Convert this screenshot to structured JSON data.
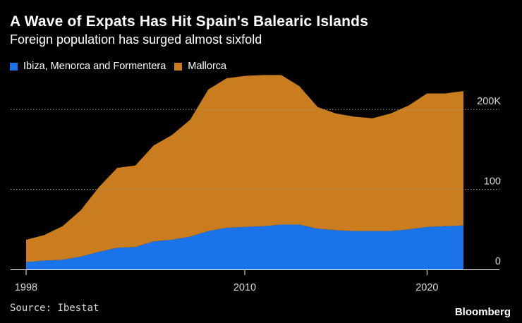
{
  "header": {
    "title": "A Wave of Expats Has Hit Spain's Balearic Islands",
    "subtitle": "Foreign population has surged almost sixfold"
  },
  "footer": {
    "source": "Source: Ibestat",
    "brand": "Bloomberg"
  },
  "chart_data": {
    "type": "area",
    "stacked": true,
    "title": "A Wave of Expats Has Hit Spain's Balearic Islands",
    "subtitle": "Foreign population has surged almost sixfold",
    "x": [
      1998,
      1999,
      2000,
      2001,
      2002,
      2003,
      2004,
      2005,
      2006,
      2007,
      2008,
      2009,
      2010,
      2011,
      2012,
      2013,
      2014,
      2015,
      2016,
      2017,
      2018,
      2019,
      2020,
      2021,
      2022
    ],
    "series": [
      {
        "name": "Ibiza, Menorca and Formentera",
        "color": "#1a73e8",
        "values": [
          9,
          11,
          12,
          16,
          22,
          27,
          28,
          35,
          37,
          41,
          48,
          52,
          53,
          54,
          56,
          56,
          51,
          49,
          48,
          48,
          48,
          50,
          53,
          54,
          55
        ]
      },
      {
        "name": "Mallorca",
        "color": "#c97d1e",
        "values": [
          28,
          32,
          42,
          58,
          81,
          100,
          102,
          120,
          131,
          146,
          177,
          187,
          189,
          189,
          187,
          173,
          152,
          146,
          143,
          141,
          147,
          155,
          167,
          166,
          168
        ]
      }
    ],
    "xticks": [
      "1998",
      "2010",
      "2020"
    ],
    "yticks": [
      "0",
      "100",
      "200K"
    ],
    "ylim": [
      0,
      250
    ],
    "grid": "dotted-horizontal",
    "legend": "top-left"
  }
}
